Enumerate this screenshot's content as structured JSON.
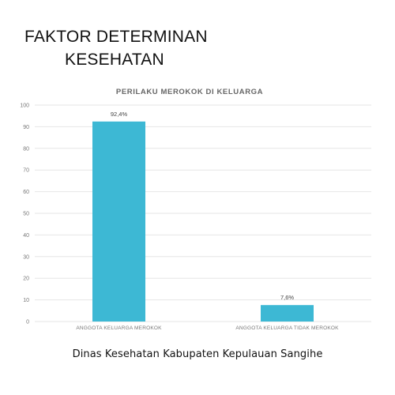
{
  "headline": {
    "line1": "FAKTOR DETERMINAN",
    "line2": "KESEHATAN"
  },
  "footer": "Dinas Kesehatan Kabupaten Kepulauan Sangihe",
  "colors": {
    "bar": "#3db8d4",
    "grid": "#e6e6e6",
    "axis_text": "#777777",
    "chart_title": "#666666"
  },
  "chart_data": {
    "type": "bar",
    "title": "PERILAKU MEROKOK DI KELUARGA",
    "categories": [
      "ANGGOTA KELUARGA MEROKOK",
      "ANGGOTA KELUARGA TIDAK MEROKOK"
    ],
    "values": [
      92.4,
      7.6
    ],
    "data_labels": [
      "92,4%",
      "7,6%"
    ],
    "ylim": [
      0,
      100
    ],
    "yticks": [
      0,
      10,
      20,
      30,
      40,
      50,
      60,
      70,
      80,
      90,
      100
    ],
    "grid": true,
    "legend": "none"
  }
}
